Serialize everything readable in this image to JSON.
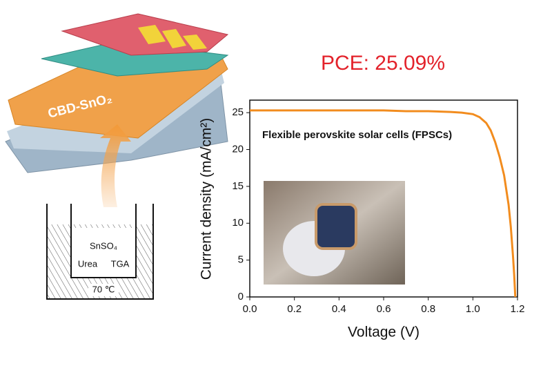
{
  "chart_data": {
    "type": "line",
    "annotation": "PCE: 25.09%",
    "subtitle": "Flexible perovskite solar cells (FPSCs)",
    "x_label": "Voltage (V)",
    "y_label": "Current density (mA/cm²)",
    "x": [
      0,
      0.1,
      0.2,
      0.3,
      0.4,
      0.5,
      0.6,
      0.7,
      0.8,
      0.9,
      0.95,
      1.0,
      1.03,
      1.06,
      1.08,
      1.1,
      1.12,
      1.14,
      1.16,
      1.17,
      1.18,
      1.185,
      1.19
    ],
    "values": [
      25.3,
      25.3,
      25.3,
      25.3,
      25.3,
      25.3,
      25.3,
      25.2,
      25.2,
      25.1,
      25.0,
      24.8,
      24.4,
      23.6,
      22.6,
      21.0,
      19.0,
      16.5,
      12.5,
      9.5,
      5.5,
      3.0,
      0
    ],
    "color": "#f28c1e",
    "xlim": [
      0,
      1.2
    ],
    "xticks": [
      {
        "value": 0,
        "label": "0.0"
      },
      0.2,
      0.4,
      0.6,
      0.8,
      {
        "value": 1,
        "label": "1.0"
      },
      1.2
    ],
    "ylim": [
      0,
      26.7
    ],
    "yticks": [
      0,
      5,
      10,
      15,
      20,
      25
    ],
    "annotation_color": "#e3222b"
  },
  "diagram": {
    "layer_label": "CBD-SnO₂",
    "solution": "SnSO₄",
    "reagent_1": "Urea",
    "reagent_2": "TGA",
    "temperature": "70 ℃"
  }
}
